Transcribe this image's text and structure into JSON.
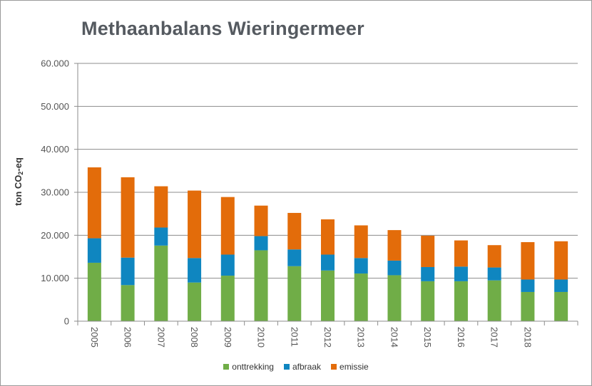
{
  "chart_data": {
    "type": "bar",
    "stacked": true,
    "title": "Methaanbalans Wieringermeer",
    "ylabel": "ton CO",
    "ylabel_sub": "2",
    "ylabel_suffix": "-eq",
    "ylim": [
      0,
      60000
    ],
    "yticks": [
      "0",
      "10.000",
      "20.000",
      "30.000",
      "40.000",
      "50.000",
      "60.000"
    ],
    "ytick_values": [
      0,
      10000,
      20000,
      30000,
      40000,
      50000,
      60000
    ],
    "grid": true,
    "legend_position": "bottom",
    "categories": [
      "2005",
      "2006",
      "2007",
      "2008",
      "2009",
      "2010",
      "2011",
      "2012",
      "2013",
      "2014",
      "2015",
      "2016",
      "2017",
      "2018",
      ""
    ],
    "series": [
      {
        "name": "onttrekking",
        "color": "#70ad47",
        "values": [
          13600,
          8400,
          17600,
          9000,
          10600,
          16500,
          12800,
          11800,
          11100,
          10700,
          9300,
          9300,
          9500,
          6800,
          6800
        ]
      },
      {
        "name": "afbraak",
        "color": "#0f86c0",
        "values": [
          5700,
          6400,
          4200,
          5700,
          4900,
          3300,
          3900,
          3700,
          3600,
          3400,
          3300,
          3400,
          3000,
          2900,
          2900
        ]
      },
      {
        "name": "emissie",
        "color": "#e36c0a",
        "values": [
          16500,
          18700,
          9600,
          15700,
          13400,
          7100,
          8500,
          8200,
          7600,
          7100,
          7300,
          6100,
          5200,
          8700,
          8900
        ]
      }
    ]
  }
}
